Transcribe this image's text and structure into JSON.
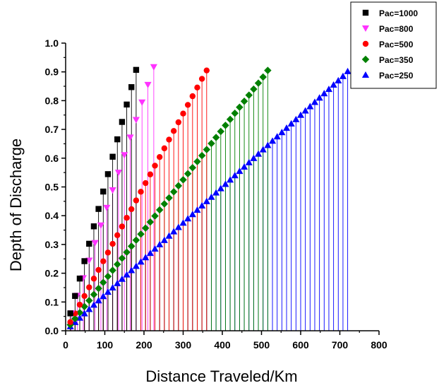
{
  "chart_data": {
    "type": "scatter",
    "xlabel": "Distance Traveled/Km",
    "ylabel": "Depth of Discharge",
    "xlim": [
      0,
      800
    ],
    "ylim": [
      0,
      1.0
    ],
    "x_ticks": [
      "0",
      "100",
      "200",
      "300",
      "400",
      "500",
      "600",
      "700",
      "800"
    ],
    "y_ticks": [
      "0.0",
      "0.1",
      "0.2",
      "0.3",
      "0.4",
      "0.5",
      "0.6",
      "0.7",
      "0.8",
      "0.9",
      "1.0"
    ],
    "grid": false,
    "legend_position": "top-right",
    "drop_lines": true,
    "series": [
      {
        "name": "Pac=1000",
        "marker": "square",
        "color": "#000000",
        "step_km": 12,
        "step_dod": 0.0605,
        "count": 15,
        "last_x": 180,
        "last_y": 0.907
      },
      {
        "name": "Pac=800",
        "marker": "triangle-down",
        "color": "#ff33ff",
        "step_km": 15,
        "step_dod": 0.0611,
        "count": 15,
        "last_x": 225,
        "last_y": 0.917
      },
      {
        "name": "Pac=500",
        "marker": "circle",
        "color": "#ff0000",
        "step_km": 12,
        "step_dod": 0.0302,
        "count": 30,
        "last_x": 360,
        "last_y": 0.905
      },
      {
        "name": "Pac=350",
        "marker": "diamond",
        "color": "#008000",
        "step_km": 12,
        "step_dod": 0.021,
        "count": 43,
        "last_x": 516,
        "last_y": 0.905
      },
      {
        "name": "Pac=250",
        "marker": "triangle-up",
        "color": "#0000ff",
        "step_km": 12,
        "step_dod": 0.015,
        "count": 60,
        "last_x": 720,
        "last_y": 0.902
      }
    ]
  }
}
